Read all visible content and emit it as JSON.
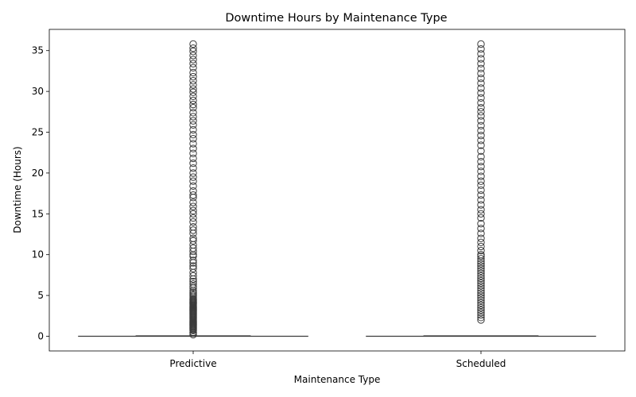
{
  "chart_data": {
    "type": "box",
    "title": "Downtime Hours by Maintenance Type",
    "xlabel": "Maintenance Type",
    "ylabel": "Downtime (Hours)",
    "categories": [
      "Predictive",
      "Scheduled"
    ],
    "ylim": [
      -1.8,
      37.6
    ],
    "yticks": [
      0,
      5,
      10,
      15,
      20,
      25,
      30,
      35
    ],
    "grid": false,
    "box_stats": [
      {
        "category": "Predictive",
        "min": 0,
        "q1": 0,
        "median": 0,
        "q3": 0,
        "max": 0,
        "outlier_range": [
          0.2,
          35.8
        ]
      },
      {
        "category": "Scheduled",
        "min": 0,
        "q1": 0,
        "median": 0,
        "q3": 0,
        "max": 0,
        "outlier_range": [
          2.0,
          35.8
        ]
      }
    ],
    "outliers": {
      "Predictive": [
        0.2,
        0.4,
        0.5,
        0.7,
        0.8,
        0.9,
        1.0,
        1.1,
        1.2,
        1.3,
        1.4,
        1.5,
        1.6,
        1.7,
        1.8,
        1.9,
        2.0,
        2.1,
        2.2,
        2.3,
        2.4,
        2.5,
        2.6,
        2.7,
        2.8,
        2.9,
        3.0,
        3.1,
        3.2,
        3.3,
        3.4,
        3.5,
        3.6,
        3.7,
        3.8,
        3.9,
        4.0,
        4.1,
        4.2,
        4.3,
        4.4,
        4.5,
        4.6,
        4.8,
        5.0,
        5.2,
        5.4,
        5.6,
        5.9,
        6.1,
        6.4,
        6.7,
        7.0,
        7.4,
        7.8,
        8.3,
        8.6,
        9.0,
        9.3,
        9.8,
        10.0,
        10.4,
        10.8,
        11.2,
        11.7,
        12.0,
        12.6,
        13.0,
        13.4,
        14.0,
        14.5,
        15.0,
        15.4,
        15.9,
        16.4,
        17.0,
        17.3,
        17.8,
        18.4,
        19.0,
        19.5,
        20.0,
        20.6,
        21.2,
        21.8,
        22.4,
        23.0,
        23.6,
        24.2,
        24.7,
        25.3,
        25.9,
        26.4,
        26.9,
        27.4,
        28.0,
        28.4,
        28.9,
        29.4,
        29.9,
        30.3,
        30.8,
        31.3,
        31.8,
        32.3,
        32.9,
        33.4,
        33.9,
        34.4,
        34.9,
        35.3,
        35.8
      ],
      "Scheduled": [
        2.0,
        2.3,
        2.6,
        2.9,
        3.2,
        3.5,
        3.8,
        4.1,
        4.4,
        4.7,
        5.0,
        5.3,
        5.6,
        5.9,
        6.2,
        6.5,
        6.8,
        7.1,
        7.4,
        7.7,
        8.0,
        8.3,
        8.6,
        8.9,
        9.2,
        9.5,
        9.8,
        10.0,
        10.5,
        11.0,
        11.5,
        12.0,
        12.6,
        13.2,
        13.8,
        14.5,
        15.0,
        15.5,
        16.1,
        16.7,
        17.3,
        17.9,
        18.5,
        19.0,
        19.6,
        20.2,
        20.8,
        21.4,
        22.0,
        22.7,
        23.4,
        24.0,
        24.6,
        25.2,
        25.8,
        26.4,
        27.0,
        27.5,
        28.0,
        28.6,
        29.2,
        29.8,
        30.4,
        31.0,
        31.6,
        32.2,
        32.8,
        33.4,
        34.0,
        34.6,
        35.2,
        35.8
      ]
    }
  }
}
